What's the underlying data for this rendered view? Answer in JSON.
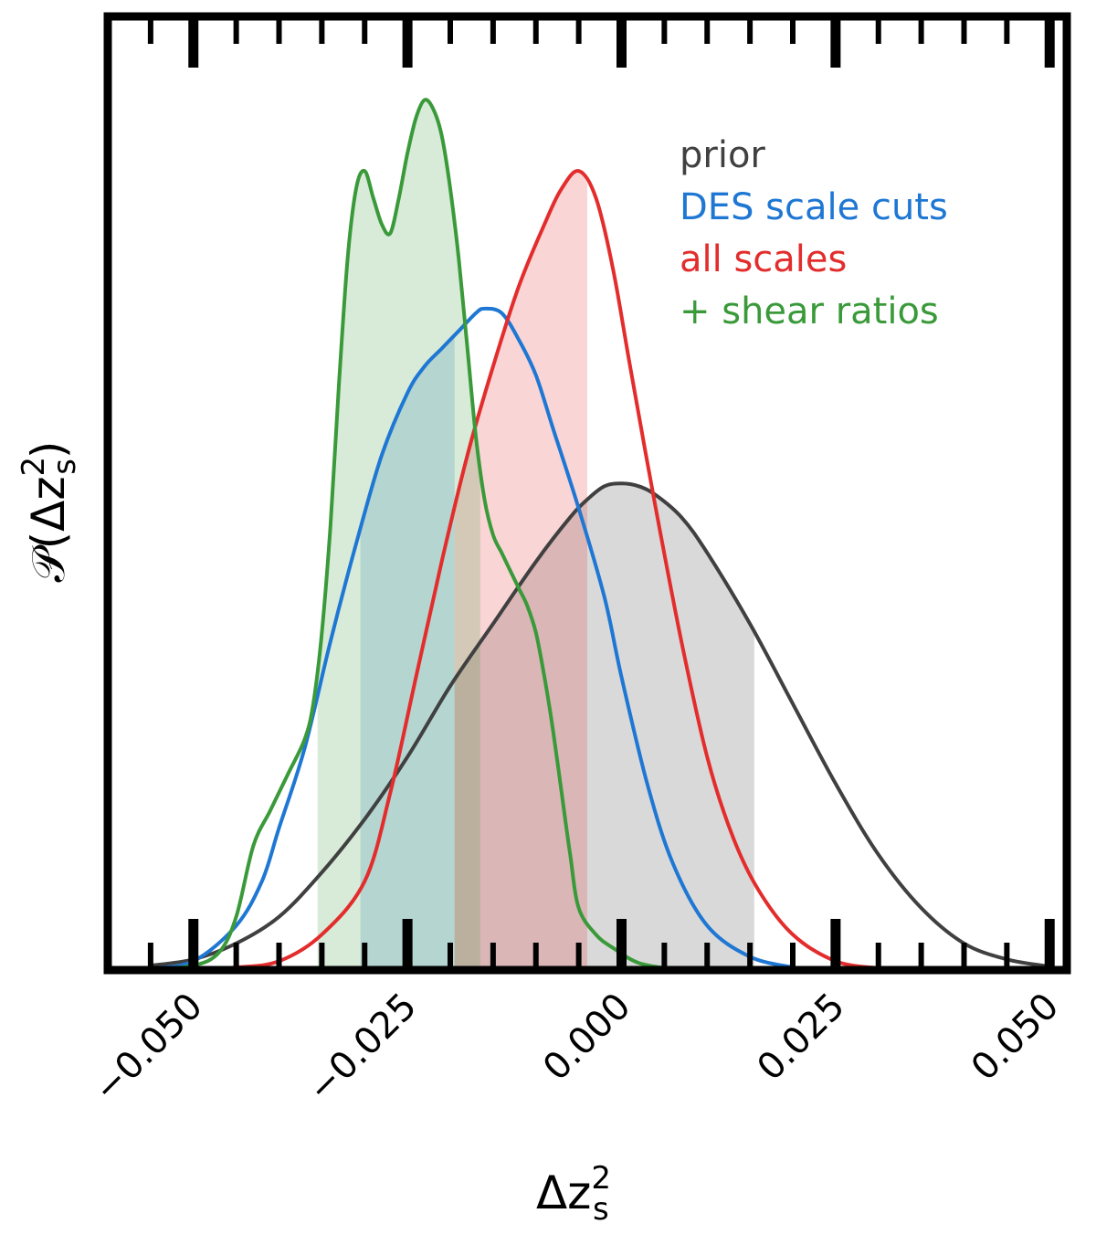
{
  "chart_data": {
    "type": "area",
    "xlabel_main": "Δz",
    "xlabel_sub": "s",
    "xlabel_sup": "2",
    "ylabel_prefix": "𝒫(Δz",
    "ylabel_sub": "s",
    "ylabel_sup": "2",
    "ylabel_suffix": ")",
    "xlim": [
      -0.06,
      0.052
    ],
    "ylim": [
      0,
      1.0
    ],
    "x_ticks": [
      -0.05,
      -0.025,
      0.0,
      0.025,
      0.05
    ],
    "x_tick_labels": [
      "−0.050",
      "−0.025",
      "0.000",
      "0.025",
      "0.050"
    ],
    "minor_tick_step": 0.005,
    "grid": false,
    "legend_position": "top-right",
    "series": [
      {
        "name": "prior",
        "color": "#404040",
        "band": [
          -0.0195,
          0.0155
        ],
        "points": [
          [
            -0.055,
            0.005
          ],
          [
            -0.05,
            0.012
          ],
          [
            -0.045,
            0.03
          ],
          [
            -0.04,
            0.06
          ],
          [
            -0.035,
            0.11
          ],
          [
            -0.03,
            0.17
          ],
          [
            -0.025,
            0.24
          ],
          [
            -0.02,
            0.32
          ],
          [
            -0.015,
            0.39
          ],
          [
            -0.01,
            0.46
          ],
          [
            -0.006,
            0.51
          ],
          [
            -0.004,
            0.53
          ],
          [
            -0.002,
            0.545
          ],
          [
            0.0,
            0.548
          ],
          [
            0.002,
            0.545
          ],
          [
            0.004,
            0.535
          ],
          [
            0.007,
            0.51
          ],
          [
            0.01,
            0.47
          ],
          [
            0.015,
            0.39
          ],
          [
            0.02,
            0.3
          ],
          [
            0.025,
            0.21
          ],
          [
            0.03,
            0.13
          ],
          [
            0.035,
            0.07
          ],
          [
            0.04,
            0.03
          ],
          [
            0.045,
            0.012
          ],
          [
            0.05,
            0.004
          ]
        ]
      },
      {
        "name": "DES scale cuts",
        "color": "#1f77d4",
        "band": [
          -0.0305,
          -0.0195
        ],
        "points": [
          [
            -0.055,
            0.002
          ],
          [
            -0.05,
            0.01
          ],
          [
            -0.045,
            0.05
          ],
          [
            -0.042,
            0.1
          ],
          [
            -0.04,
            0.16
          ],
          [
            -0.037,
            0.25
          ],
          [
            -0.034,
            0.37
          ],
          [
            -0.031,
            0.48
          ],
          [
            -0.028,
            0.58
          ],
          [
            -0.025,
            0.65
          ],
          [
            -0.023,
            0.68
          ],
          [
            -0.021,
            0.7
          ],
          [
            -0.019,
            0.72
          ],
          [
            -0.017,
            0.74
          ],
          [
            -0.016,
            0.745
          ],
          [
            -0.014,
            0.74
          ],
          [
            -0.012,
            0.71
          ],
          [
            -0.01,
            0.67
          ],
          [
            -0.008,
            0.61
          ],
          [
            -0.005,
            0.52
          ],
          [
            -0.002,
            0.42
          ],
          [
            0.0,
            0.33
          ],
          [
            0.003,
            0.21
          ],
          [
            0.006,
            0.12
          ],
          [
            0.01,
            0.05
          ],
          [
            0.015,
            0.015
          ],
          [
            0.02,
            0.003
          ]
        ]
      },
      {
        "name": "all scales",
        "color": "#e32d2d",
        "band": [
          -0.0195,
          -0.004
        ],
        "points": [
          [
            -0.05,
            0.001
          ],
          [
            -0.045,
            0.003
          ],
          [
            -0.04,
            0.01
          ],
          [
            -0.035,
            0.04
          ],
          [
            -0.03,
            0.1
          ],
          [
            -0.027,
            0.2
          ],
          [
            -0.024,
            0.33
          ],
          [
            -0.021,
            0.46
          ],
          [
            -0.018,
            0.58
          ],
          [
            -0.015,
            0.68
          ],
          [
            -0.012,
            0.77
          ],
          [
            -0.009,
            0.84
          ],
          [
            -0.007,
            0.88
          ],
          [
            -0.005,
            0.9
          ],
          [
            -0.003,
            0.87
          ],
          [
            -0.001,
            0.79
          ],
          [
            0.001,
            0.68
          ],
          [
            0.004,
            0.52
          ],
          [
            0.007,
            0.37
          ],
          [
            0.01,
            0.24
          ],
          [
            0.013,
            0.15
          ],
          [
            0.016,
            0.09
          ],
          [
            0.02,
            0.04
          ],
          [
            0.025,
            0.01
          ],
          [
            0.03,
            0.002
          ]
        ]
      },
      {
        "name": "+ shear ratios",
        "color": "#3a9a3a",
        "band": [
          -0.0355,
          -0.0165
        ],
        "points": [
          [
            -0.055,
            0.001
          ],
          [
            -0.05,
            0.005
          ],
          [
            -0.047,
            0.02
          ],
          [
            -0.045,
            0.06
          ],
          [
            -0.043,
            0.14
          ],
          [
            -0.041,
            0.18
          ],
          [
            -0.039,
            0.22
          ],
          [
            -0.037,
            0.26
          ],
          [
            -0.036,
            0.3
          ],
          [
            -0.035,
            0.38
          ],
          [
            -0.034,
            0.5
          ],
          [
            -0.033,
            0.66
          ],
          [
            -0.032,
            0.8
          ],
          [
            -0.031,
            0.88
          ],
          [
            -0.03,
            0.9
          ],
          [
            -0.029,
            0.87
          ],
          [
            -0.028,
            0.84
          ],
          [
            -0.027,
            0.83
          ],
          [
            -0.026,
            0.87
          ],
          [
            -0.025,
            0.92
          ],
          [
            -0.024,
            0.96
          ],
          [
            -0.023,
            0.98
          ],
          [
            -0.022,
            0.97
          ],
          [
            -0.021,
            0.94
          ],
          [
            -0.02,
            0.88
          ],
          [
            -0.019,
            0.8
          ],
          [
            -0.018,
            0.7
          ],
          [
            -0.017,
            0.6
          ],
          [
            -0.016,
            0.53
          ],
          [
            -0.015,
            0.49
          ],
          [
            -0.014,
            0.47
          ],
          [
            -0.013,
            0.45
          ],
          [
            -0.012,
            0.43
          ],
          [
            -0.011,
            0.41
          ],
          [
            -0.01,
            0.38
          ],
          [
            -0.009,
            0.33
          ],
          [
            -0.008,
            0.27
          ],
          [
            -0.007,
            0.2
          ],
          [
            -0.006,
            0.13
          ],
          [
            -0.005,
            0.07
          ],
          [
            -0.003,
            0.04
          ],
          [
            -0.001,
            0.025
          ],
          [
            0.002,
            0.008
          ],
          [
            0.006,
            0.001
          ]
        ]
      }
    ]
  }
}
